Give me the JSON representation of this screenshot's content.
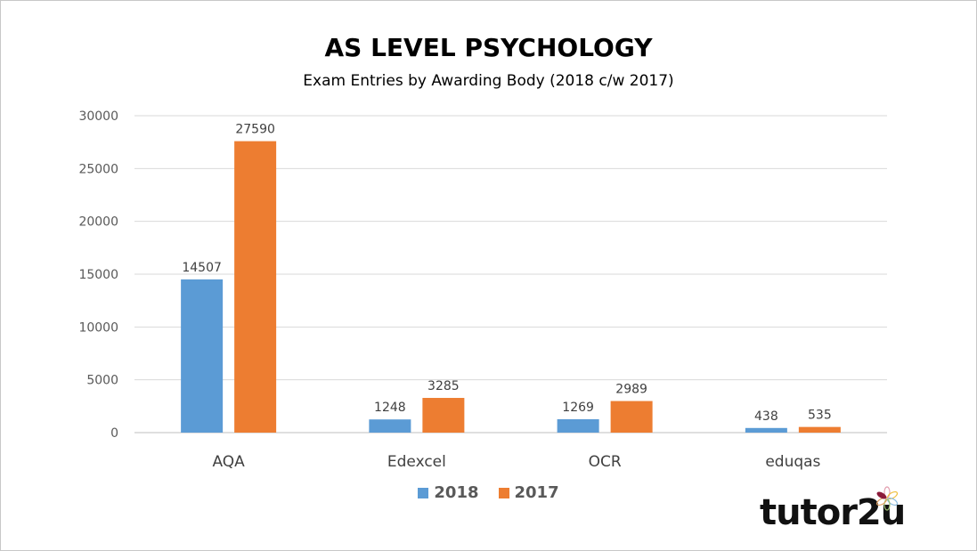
{
  "chart_data": {
    "type": "bar",
    "title": "AS LEVEL PSYCHOLOGY",
    "subtitle": "Exam Entries by Awarding Body (2018 c/w 2017)",
    "categories": [
      "AQA",
      "Edexcel",
      "OCR",
      "eduqas"
    ],
    "series": [
      {
        "name": "2018",
        "color": "#5B9BD5",
        "values": [
          14507,
          1248,
          1269,
          438
        ]
      },
      {
        "name": "2017",
        "color": "#ED7D31",
        "values": [
          27590,
          3285,
          2989,
          535
        ]
      }
    ],
    "ylim": [
      0,
      30000
    ],
    "yticks": [
      0,
      5000,
      10000,
      15000,
      20000,
      25000,
      30000
    ],
    "grid": true,
    "legend": "bottom",
    "xlabel": "",
    "ylabel": ""
  },
  "logo": {
    "text": "tutor2u"
  }
}
